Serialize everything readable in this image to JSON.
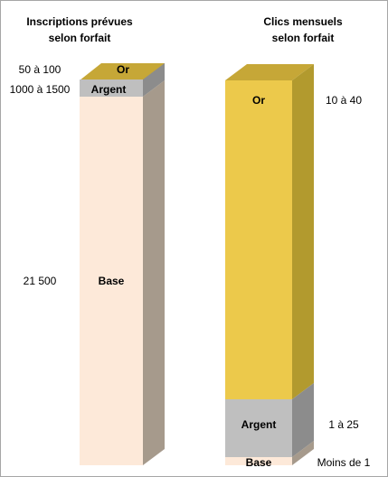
{
  "chart_data": [
    {
      "type": "stacked-bar-3d",
      "title": [
        "Inscriptions prévues",
        "selon forfait"
      ],
      "segments": [
        {
          "name": "Or",
          "value_label": "50 à 100",
          "color": "#c6a737",
          "top": "#b29a2e",
          "side": "#8f7a22"
        },
        {
          "name": "Argent",
          "value_label": "1000 à 1500",
          "color": "#bfbfbf",
          "top": "#bfbfbf",
          "side": "#8c8c8c"
        },
        {
          "name": "Base",
          "value_label": "21 500",
          "color": "#fde9d9",
          "top": "#fde9d9",
          "side": "#a69a8c"
        }
      ]
    },
    {
      "type": "stacked-bar-3d",
      "title": [
        "Clics mensuels",
        "selon forfait"
      ],
      "segments": [
        {
          "name": "Or",
          "value_label": "10 à 40",
          "color": "#ecc94b",
          "top": "#c6a737",
          "side": "#b29a2e"
        },
        {
          "name": "Argent",
          "value_label": "1 à 25",
          "color": "#bfbfbf",
          "top": "#bfbfbf",
          "side": "#8c8c8c"
        },
        {
          "name": "Base",
          "value_label": "Moins de 1",
          "color": "#fde9d9",
          "top": "#fde9d9",
          "side": "#a69a8c"
        }
      ]
    }
  ]
}
